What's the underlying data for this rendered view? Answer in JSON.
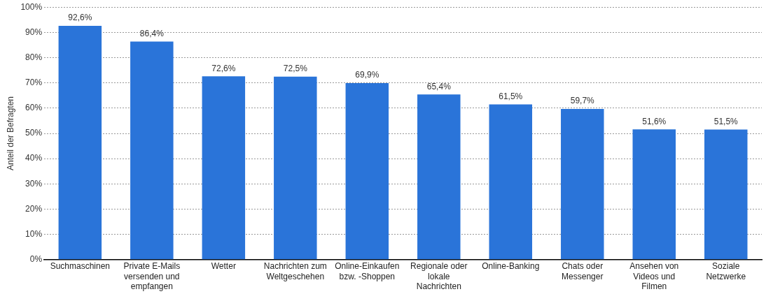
{
  "chart_data": {
    "type": "bar",
    "ylabel": "Anteil der Befragten",
    "categories": [
      "Suchmaschinen",
      "Private E-Mails versenden und empfangen",
      "Wetter",
      "Nachrichten zum Weltgeschehen",
      "Online-Einkaufen bzw. -Shoppen",
      "Regionale oder lokale Nachrichten",
      "Online-Banking",
      "Chats oder Messenger",
      "Ansehen von Videos und Filmen",
      "Soziale Netzwerke"
    ],
    "values": [
      92.6,
      86.4,
      72.6,
      72.5,
      69.9,
      65.4,
      61.5,
      59.7,
      51.6,
      51.5
    ],
    "value_labels": [
      "92,6%",
      "86,4%",
      "72,6%",
      "72,5%",
      "69,9%",
      "65,4%",
      "61,5%",
      "59,7%",
      "51,6%",
      "51,5%"
    ],
    "color": "#2a74d9",
    "ylim": [
      0,
      100
    ],
    "yticks": [
      {
        "value": 0,
        "label": "0%"
      },
      {
        "value": 10,
        "label": "10%"
      },
      {
        "value": 20,
        "label": "20%"
      },
      {
        "value": 30,
        "label": "30%"
      },
      {
        "value": 40,
        "label": "40%"
      },
      {
        "value": 50,
        "label": "50%"
      },
      {
        "value": 60,
        "label": "60%"
      },
      {
        "value": 70,
        "label": "70%"
      },
      {
        "value": 80,
        "label": "80%"
      },
      {
        "value": 90,
        "label": "90%"
      },
      {
        "value": 100,
        "label": "100%"
      }
    ],
    "grid": "y",
    "legend": false
  }
}
